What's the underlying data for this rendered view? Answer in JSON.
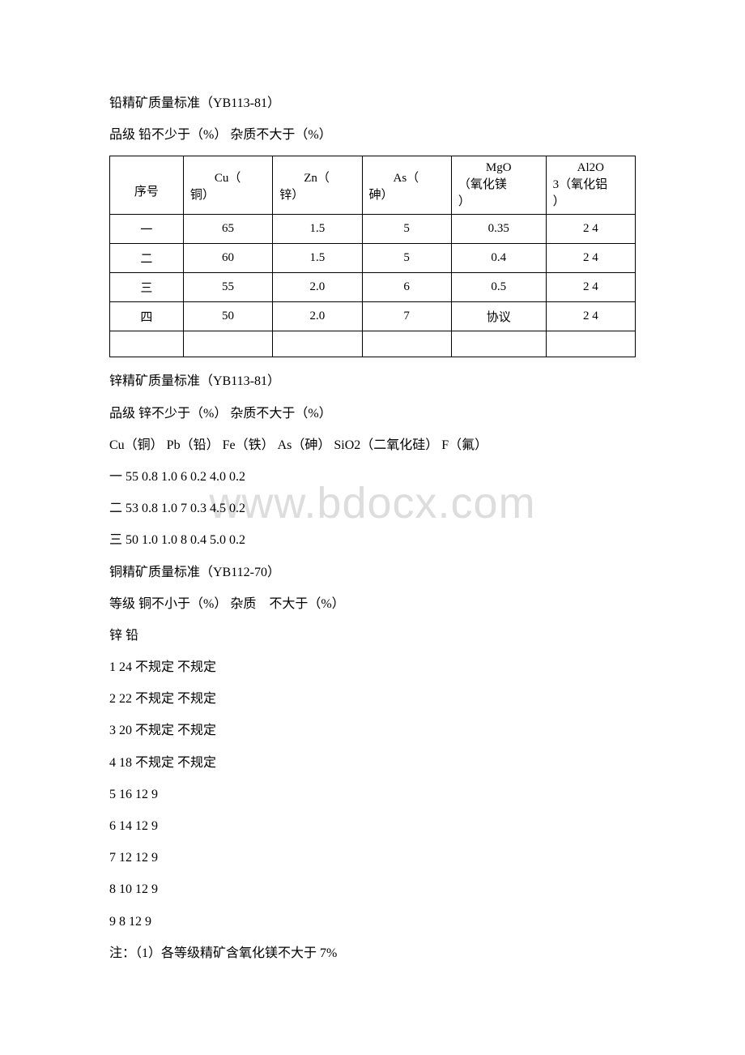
{
  "watermark": "www.bdocx.com",
  "title1": "铅精矿质量标准（YB113-81）",
  "subtitle1": "品级 铅不少于（%） 杂质不大于（%）",
  "table": {
    "headers": {
      "col1": "序号",
      "col2_line1": "Cu（",
      "col2_line2": "铜）",
      "col3_line1": "Zn（",
      "col3_line2": "锌）",
      "col4_line1": "As（",
      "col4_line2": "砷）",
      "col5_line1": "MgO",
      "col5_line2": "（氧化镁",
      "col5_line3": "）",
      "col6_line1": "Al2O",
      "col6_line2": "3（氧化铝",
      "col6_line3": "）"
    },
    "rows": [
      {
        "c1": "一",
        "c2": "65",
        "c3": "1.5",
        "c4": "5",
        "c5": "0.35",
        "c6": "2 4"
      },
      {
        "c1": "二",
        "c2": "60",
        "c3": "1.5",
        "c4": "5",
        "c5": "0.4",
        "c6": "2 4"
      },
      {
        "c1": "三",
        "c2": "55",
        "c3": "2.0",
        "c4": "6",
        "c5": "0.5",
        "c6": "2 4"
      },
      {
        "c1": "四",
        "c2": "50",
        "c3": "2.0",
        "c4": "7",
        "c5": "协议",
        "c6": "2 4"
      }
    ]
  },
  "lines": [
    "锌精矿质量标准（YB113-81）",
    "品级 锌不少于（%） 杂质不大于（%）",
    "Cu（铜） Pb（铅） Fe（铁） As（砷） SiO2（二氧化硅） F（氟）",
    "一 55 0.8 1.0 6 0.2 4.0 0.2",
    "二 53 0.8 1.0 7 0.3 4.5 0.2",
    "三 50 1.0 1.0 8 0.4 5.0 0.2",
    "铜精矿质量标准（YB112-70）",
    "等级 铜不小于（%） 杂质　不大于（%）",
    "锌 铅",
    "1 24 不规定 不规定",
    "2 22 不规定 不规定",
    "3 20 不规定 不规定",
    "4 18 不规定 不规定",
    "5 16 12 9",
    "6 14 12 9",
    "7 12 12 9",
    "8 10 12 9",
    "9 8 12 9",
    "注：（1）各等级精矿含氧化镁不大于 7%"
  ]
}
